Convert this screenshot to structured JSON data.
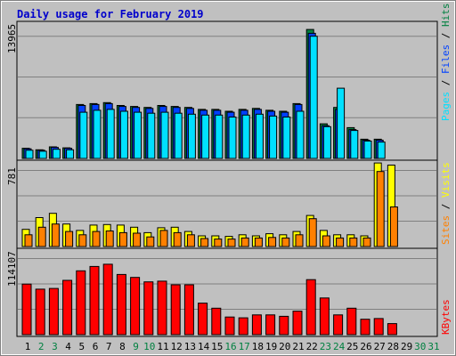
{
  "title": "Daily usage for February 2019",
  "colors": {
    "background": "#c0c0c0",
    "title": "#0000cc",
    "hits": "#008040",
    "files": "#0040ff",
    "pages": "#00e0ff",
    "visits": "#ffff00",
    "sites": "#ff8000",
    "kbytes": "#ff0000",
    "weekend_day": "#008040",
    "weekday": "#000000"
  },
  "right_labels": {
    "top": [
      {
        "text": "Pages",
        "color": "#00e0ff"
      },
      {
        "text": " / ",
        "color": "#000000"
      },
      {
        "text": "Files",
        "color": "#0040ff"
      },
      {
        "text": " / ",
        "color": "#000000"
      },
      {
        "text": "Hits",
        "color": "#008040"
      }
    ],
    "middle": [
      {
        "text": "Sites",
        "color": "#ff8000"
      },
      {
        "text": " / ",
        "color": "#000000"
      },
      {
        "text": "Visits",
        "color": "#ffff00"
      }
    ],
    "bottom": [
      {
        "text": "KBytes",
        "color": "#ff0000"
      }
    ]
  },
  "chart_data": [
    {
      "type": "bar",
      "panel": "hits-files-pages",
      "ymax_label": "13965",
      "ylim": [
        0,
        13965
      ],
      "categories": [
        "1",
        "2",
        "3",
        "4",
        "5",
        "6",
        "7",
        "8",
        "9",
        "10",
        "11",
        "12",
        "13",
        "14",
        "15",
        "16",
        "17",
        "18",
        "19",
        "20",
        "21",
        "22",
        "23",
        "24",
        "25",
        "26",
        "27",
        "28",
        "29",
        "30",
        "31"
      ],
      "weekend_days": [
        "2",
        "3",
        "9",
        "10",
        "16",
        "17",
        "23",
        "24",
        "30",
        "31"
      ],
      "series": [
        {
          "name": "Hits",
          "values": [
            1050,
            900,
            1200,
            1100,
            5600,
            5700,
            5800,
            5500,
            5400,
            5300,
            5500,
            5400,
            5300,
            5100,
            5100,
            4900,
            5100,
            5200,
            5000,
            4900,
            5700,
            13400,
            3600,
            5300,
            3200,
            2000,
            2000,
            null,
            null,
            null,
            null
          ]
        },
        {
          "name": "Files",
          "values": [
            1000,
            850,
            1150,
            1050,
            5500,
            5600,
            5700,
            5400,
            5300,
            5200,
            5400,
            5300,
            5200,
            5000,
            5000,
            4800,
            5000,
            5100,
            4900,
            4800,
            5600,
            13000,
            3400,
            5100,
            3000,
            1900,
            1900,
            null,
            null,
            null,
            null
          ]
        },
        {
          "name": "Pages",
          "values": [
            850,
            750,
            950,
            900,
            4800,
            5000,
            5100,
            4900,
            4800,
            4700,
            4800,
            4700,
            4600,
            4500,
            4500,
            4300,
            4500,
            4600,
            4400,
            4300,
            4900,
            12700,
            3300,
            7300,
            2900,
            1800,
            1700,
            null,
            null,
            null,
            null
          ]
        }
      ]
    },
    {
      "type": "bar",
      "panel": "visits-sites",
      "ymax_label": "781",
      "ylim": [
        0,
        781
      ],
      "categories": [
        "1",
        "2",
        "3",
        "4",
        "5",
        "6",
        "7",
        "8",
        "9",
        "10",
        "11",
        "12",
        "13",
        "14",
        "15",
        "16",
        "17",
        "18",
        "19",
        "20",
        "21",
        "22",
        "23",
        "24",
        "25",
        "26",
        "27",
        "28",
        "29",
        "30",
        "31"
      ],
      "series": [
        {
          "name": "Visits",
          "values": [
            160,
            270,
            310,
            210,
            150,
            200,
            205,
            200,
            180,
            130,
            175,
            180,
            140,
            100,
            100,
            95,
            110,
            100,
            120,
            110,
            140,
            290,
            150,
            110,
            110,
            100,
            780,
            760,
            null,
            null,
            null
          ]
        },
        {
          "name": "Sites",
          "values": [
            110,
            180,
            210,
            140,
            110,
            140,
            145,
            130,
            125,
            90,
            150,
            130,
            110,
            75,
            70,
            70,
            80,
            80,
            85,
            80,
            110,
            260,
            100,
            80,
            80,
            80,
            700,
            370,
            null,
            null,
            null
          ]
        }
      ]
    },
    {
      "type": "bar",
      "panel": "kbytes",
      "ymax_label": "114107",
      "ylim": [
        0,
        114107
      ],
      "categories": [
        "1",
        "2",
        "3",
        "4",
        "5",
        "6",
        "7",
        "8",
        "9",
        "10",
        "11",
        "12",
        "13",
        "14",
        "15",
        "16",
        "17",
        "18",
        "19",
        "20",
        "21",
        "22",
        "23",
        "24",
        "25",
        "26",
        "27",
        "28",
        "29",
        "30",
        "31"
      ],
      "series": [
        {
          "name": "KBytes",
          "values": [
            69000,
            62000,
            63000,
            74000,
            87000,
            93000,
            96000,
            82000,
            78000,
            72000,
            73000,
            68000,
            68000,
            43000,
            36000,
            24000,
            23000,
            27000,
            27000,
            25000,
            32000,
            75000,
            50000,
            27000,
            36000,
            21000,
            22000,
            15000,
            null,
            null,
            null
          ]
        }
      ]
    }
  ]
}
